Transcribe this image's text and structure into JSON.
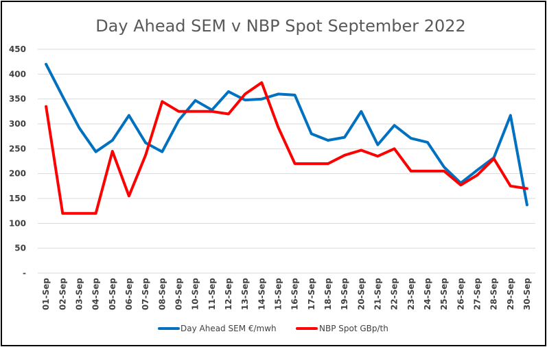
{
  "chart_data": {
    "type": "line",
    "title": "Day Ahead SEM v NBP Spot September 2022",
    "categories": [
      "01-Sep",
      "02-Sep",
      "03-Sep",
      "04-Sep",
      "05-Sep",
      "06-Sep",
      "07-Sep",
      "08-Sep",
      "09-Sep",
      "10-Sep",
      "11-Sep",
      "12-Sep",
      "13-Sep",
      "14-Sep",
      "15-Sep",
      "16-Sep",
      "17-Sep",
      "18-Sep",
      "19-Sep",
      "20-Sep",
      "21-Sep",
      "22-Sep",
      "23-Sep",
      "24-Sep",
      "25-Sep",
      "26-Sep",
      "27-Sep",
      "28-Sep",
      "29-Sep",
      "30-Sep"
    ],
    "y_ticks": [
      "-",
      "50",
      "100",
      "150",
      "200",
      "250",
      "300",
      "350",
      "400",
      "450"
    ],
    "ylim": [
      0,
      450
    ],
    "grid": true,
    "legend_position": "bottom",
    "series": [
      {
        "name": "Day Ahead SEM €/mwh",
        "color": "#0070C0",
        "values": [
          420,
          355,
          292,
          244,
          267,
          317,
          262,
          244,
          307,
          347,
          328,
          365,
          348,
          350,
          360,
          358,
          280,
          267,
          273,
          325,
          258,
          297,
          271,
          263,
          213,
          181,
          207,
          232,
          317,
          137
        ]
      },
      {
        "name": "NBP Spot GBp/th",
        "color": "#FF0000",
        "values": [
          335,
          120,
          120,
          120,
          245,
          155,
          237,
          345,
          325,
          325,
          325,
          320,
          360,
          383,
          293,
          220,
          220,
          220,
          237,
          247,
          235,
          250,
          205,
          205,
          205,
          177,
          197,
          230,
          175,
          170
        ]
      }
    ]
  }
}
